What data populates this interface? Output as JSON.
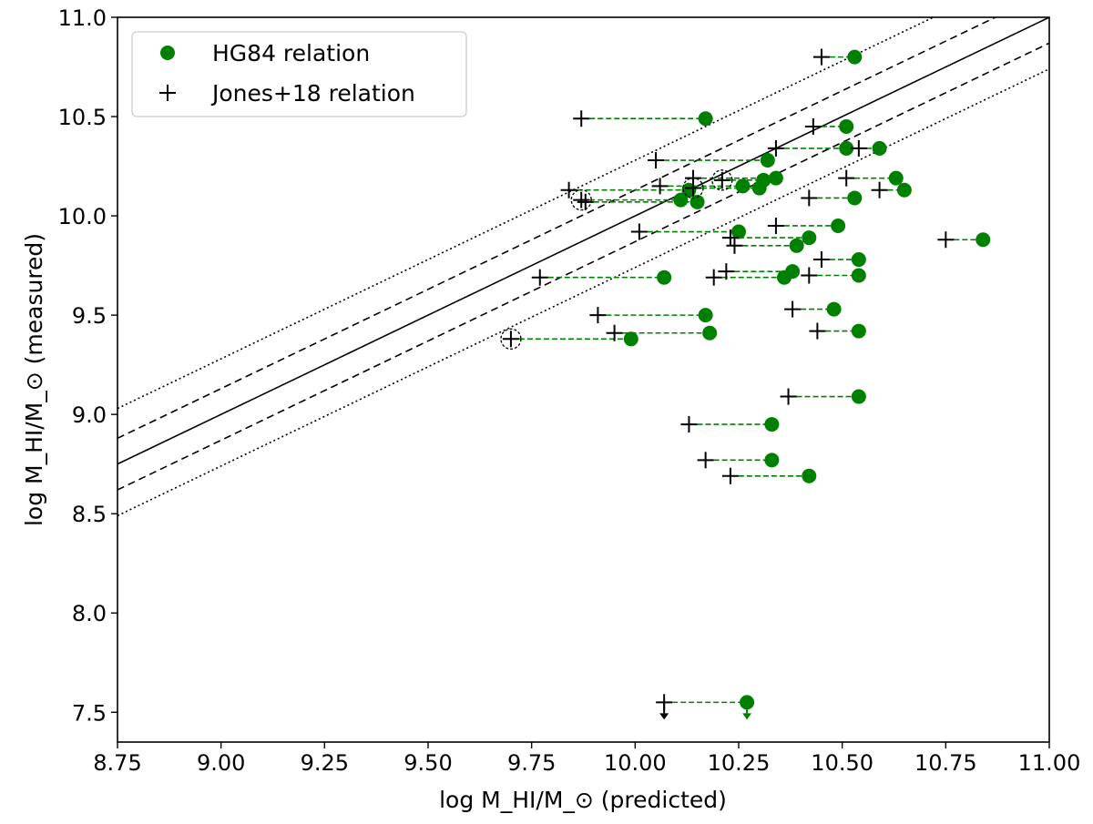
{
  "chart_data": {
    "type": "scatter",
    "xlabel": "log M_HI/M_⊙ (predicted)",
    "ylabel": "log M_HI/M_⊙ (measured)",
    "xlim": [
      8.75,
      11.0
    ],
    "ylim": [
      7.35,
      11.0
    ],
    "xticks": [
      "8.75",
      "9.00",
      "9.25",
      "9.50",
      "9.75",
      "10.00",
      "10.25",
      "10.50",
      "10.75",
      "11.00"
    ],
    "yticks": [
      "7.5",
      "8.0",
      "8.5",
      "9.0",
      "9.5",
      "10.0",
      "10.5",
      "11.0"
    ],
    "reference_lines": [
      {
        "style": "solid",
        "offset": 0.0
      },
      {
        "style": "dashed",
        "offset": 0.13
      },
      {
        "style": "dashed",
        "offset": -0.13
      },
      {
        "style": "dotted",
        "offset": 0.28
      },
      {
        "style": "dotted",
        "offset": -0.26
      }
    ],
    "legend": {
      "position": "upper-left",
      "entries": [
        {
          "label": "HG84 relation",
          "marker": "circle",
          "color": "#008000"
        },
        {
          "label": "Jones+18 relation",
          "marker": "plus",
          "color": "#000000"
        }
      ]
    },
    "series": [
      {
        "name": "HG84 relation",
        "color": "#008000",
        "marker": "circle"
      },
      {
        "name": "Jones+18 relation",
        "color": "#000000",
        "marker": "plus"
      }
    ],
    "pairs": [
      {
        "measured": 10.8,
        "hg84": 10.53,
        "jones18": 10.45
      },
      {
        "measured": 10.49,
        "hg84": 10.17,
        "jones18": 9.87
      },
      {
        "measured": 10.45,
        "hg84": 10.51,
        "jones18": 10.43
      },
      {
        "measured": 10.34,
        "hg84": 10.59,
        "jones18": 10.34
      },
      {
        "measured": 10.34,
        "hg84": 10.51,
        "jones18": 10.54
      },
      {
        "measured": 10.28,
        "hg84": 10.32,
        "jones18": 10.05
      },
      {
        "measured": 10.19,
        "hg84": 10.34,
        "jones18": 10.14
      },
      {
        "measured": 10.19,
        "hg84": 10.63,
        "jones18": 10.51
      },
      {
        "measured": 10.18,
        "hg84": 10.31,
        "jones18": 10.21,
        "circled": true
      },
      {
        "measured": 10.15,
        "hg84": 10.26,
        "jones18": 10.06
      },
      {
        "measured": 10.14,
        "hg84": 10.3,
        "jones18": 10.14,
        "circled": true
      },
      {
        "measured": 10.13,
        "hg84": 10.65,
        "jones18": 10.59
      },
      {
        "measured": 10.13,
        "hg84": 10.13,
        "jones18": 9.84
      },
      {
        "measured": 10.09,
        "hg84": 10.53,
        "jones18": 10.42
      },
      {
        "measured": 10.08,
        "hg84": 10.11,
        "jones18": 9.87,
        "circled": true
      },
      {
        "measured": 10.07,
        "hg84": 10.15,
        "jones18": 9.88
      },
      {
        "measured": 9.95,
        "hg84": 10.49,
        "jones18": 10.34
      },
      {
        "measured": 9.92,
        "hg84": 10.25,
        "jones18": 10.01
      },
      {
        "measured": 9.89,
        "hg84": 10.42,
        "jones18": 10.23
      },
      {
        "measured": 9.88,
        "hg84": 10.84,
        "jones18": 10.75
      },
      {
        "measured": 9.85,
        "hg84": 10.39,
        "jones18": 10.24
      },
      {
        "measured": 9.78,
        "hg84": 10.54,
        "jones18": 10.45
      },
      {
        "measured": 9.72,
        "hg84": 10.38,
        "jones18": 10.22
      },
      {
        "measured": 9.7,
        "hg84": 10.54,
        "jones18": 10.42
      },
      {
        "measured": 9.69,
        "hg84": 10.07,
        "jones18": 9.77
      },
      {
        "measured": 9.69,
        "hg84": 10.36,
        "jones18": 10.19
      },
      {
        "measured": 9.53,
        "hg84": 10.48,
        "jones18": 10.38
      },
      {
        "measured": 9.5,
        "hg84": 10.17,
        "jones18": 9.91
      },
      {
        "measured": 9.42,
        "hg84": 10.54,
        "jones18": 10.44
      },
      {
        "measured": 9.41,
        "hg84": 10.18,
        "jones18": 9.95
      },
      {
        "measured": 9.38,
        "hg84": 9.99,
        "jones18": 9.7,
        "circled": true
      },
      {
        "measured": 9.09,
        "hg84": 10.54,
        "jones18": 10.37
      },
      {
        "measured": 8.95,
        "hg84": 10.33,
        "jones18": 10.13
      },
      {
        "measured": 8.77,
        "hg84": 10.33,
        "jones18": 10.17
      },
      {
        "measured": 8.69,
        "hg84": 10.42,
        "jones18": 10.23
      },
      {
        "measured": 7.55,
        "hg84": 10.27,
        "jones18": 10.07,
        "upper_limit": true
      }
    ]
  }
}
